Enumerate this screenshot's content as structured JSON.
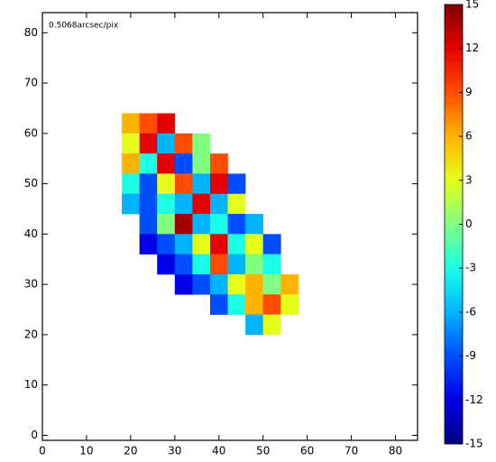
{
  "chart_data": {
    "type": "heatmap",
    "annotation": "0.5068arcsec/pix",
    "x": [
      20,
      24,
      28,
      32,
      36,
      40,
      44,
      48,
      52,
      56
    ],
    "y": [
      62,
      58,
      54,
      50,
      46,
      42,
      38,
      34,
      30,
      26,
      22
    ],
    "cell_size": 4,
    "z": [
      [
        6,
        9,
        12,
        null,
        null,
        null,
        null,
        null,
        null,
        null
      ],
      [
        3,
        12,
        -6,
        9,
        0,
        null,
        null,
        null,
        null,
        null
      ],
      [
        6,
        -3,
        12,
        -9,
        0,
        9,
        null,
        null,
        null,
        null
      ],
      [
        -3,
        -9,
        3,
        9,
        -6,
        12,
        -9,
        null,
        null,
        null
      ],
      [
        -6,
        -9,
        -3,
        -6,
        12,
        -6,
        3,
        null,
        null,
        null
      ],
      [
        null,
        -9,
        0,
        14,
        -6,
        -3,
        -9,
        -6,
        null,
        null
      ],
      [
        null,
        -12,
        -9,
        -6,
        3,
        12,
        -3,
        3,
        -9,
        null
      ],
      [
        null,
        null,
        -12,
        -9,
        -3,
        9,
        -6,
        0,
        -3,
        null
      ],
      [
        null,
        null,
        null,
        -12,
        -9,
        -6,
        3,
        6,
        0,
        6
      ],
      [
        null,
        null,
        null,
        null,
        null,
        -9,
        -3,
        6,
        9,
        3
      ],
      [
        null,
        null,
        null,
        null,
        null,
        null,
        null,
        -6,
        3,
        null
      ]
    ],
    "xlim": [
      0,
      85
    ],
    "ylim": [
      -1,
      84
    ],
    "xticks": [
      0,
      10,
      20,
      30,
      40,
      50,
      60,
      70,
      80
    ],
    "yticks": [
      0,
      10,
      20,
      30,
      40,
      50,
      60,
      70,
      80
    ],
    "colorbar": {
      "colormap": "jet",
      "lim": [
        -15,
        15
      ],
      "ticks": [
        15,
        12,
        9,
        6,
        3,
        0,
        -3,
        -6,
        -9,
        -12,
        -15
      ]
    }
  }
}
